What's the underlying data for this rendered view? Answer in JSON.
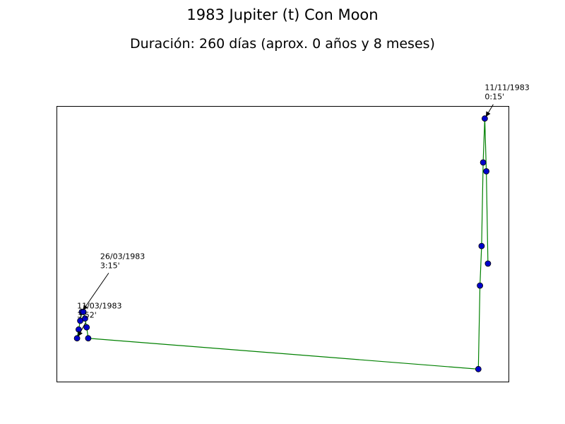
{
  "chart_data": {
    "type": "line",
    "title": "1983 Jupiter (t) Con Moon",
    "subtitle": "Duración: 260 días (aprox. 0 años y 8 meses)",
    "xlabel": "",
    "ylabel": "",
    "grid": false,
    "legend": "none",
    "axes_visible": false,
    "colors": {
      "line": "#008000",
      "marker_fill": "#0000cc",
      "marker_edge": "#000000"
    },
    "x": [
      "1983-02-26",
      "1983-02-27",
      "1983-02-28",
      "1983-03-01",
      "1983-03-02",
      "1983-03-03",
      "1983-03-04",
      "1983-03-05",
      "1983-11-04",
      "1983-11-05",
      "1983-11-06",
      "1983-11-07",
      "1983-11-08",
      "1983-11-09",
      "1983-11-10"
    ],
    "series": [
      {
        "values": [
          0.5,
          0.7,
          0.9,
          1.1,
          1.1,
          0.95,
          0.75,
          0.5,
          -0.2,
          1.7,
          2.6,
          4.5,
          5.5,
          4.3,
          2.2
        ]
      }
    ],
    "annotations": [
      {
        "point_index": 0,
        "line1": "11/03/1983",
        "line2": "3:52'"
      },
      {
        "point_index": 3,
        "line1": "26/03/1983",
        "line2": "3:15'"
      },
      {
        "point_index": 12,
        "line1": "11/11/1983",
        "line2": "0:15'"
      }
    ]
  }
}
